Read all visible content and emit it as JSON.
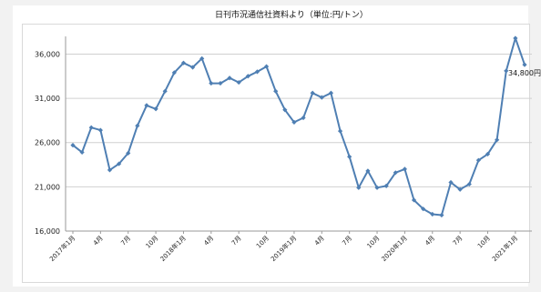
{
  "chart_data": {
    "type": "line",
    "title": "日刊市況通信社資料より（単位:円/トン）",
    "xlabel": "",
    "ylabel": "",
    "ylim": [
      16000,
      38000
    ],
    "yticks": [
      16000,
      21000,
      26000,
      31000,
      36000
    ],
    "ytick_labels": [
      "16,000",
      "21,000",
      "26,000",
      "31,000",
      "36,000"
    ],
    "grid": "horizontal",
    "legend": "none",
    "x_labels": [
      {
        "index": 0,
        "text": "2017年1月"
      },
      {
        "index": 3,
        "text": "4月"
      },
      {
        "index": 6,
        "text": "7月"
      },
      {
        "index": 9,
        "text": "10月"
      },
      {
        "index": 12,
        "text": "2018年1月"
      },
      {
        "index": 15,
        "text": "4月"
      },
      {
        "index": 18,
        "text": "7月"
      },
      {
        "index": 21,
        "text": "10月"
      },
      {
        "index": 24,
        "text": "2019年1月"
      },
      {
        "index": 27,
        "text": "4月"
      },
      {
        "index": 30,
        "text": "7月"
      },
      {
        "index": 33,
        "text": "10月"
      },
      {
        "index": 36,
        "text": "2020年1月"
      },
      {
        "index": 39,
        "text": "4月"
      },
      {
        "index": 42,
        "text": "7月"
      },
      {
        "index": 45,
        "text": "10月"
      },
      {
        "index": 48,
        "text": "2021年1月"
      }
    ],
    "series": [
      {
        "color": "#4f7fb3",
        "values": [
          25700,
          24900,
          27700,
          27400,
          22900,
          23600,
          24800,
          27900,
          30200,
          29800,
          31800,
          33900,
          35000,
          34500,
          35500,
          32700,
          32700,
          33300,
          32800,
          33500,
          34000,
          34600,
          31800,
          29700,
          28300,
          28800,
          31600,
          31100,
          31600,
          27300,
          24400,
          20900,
          22800,
          20900,
          21100,
          22600,
          23000,
          19500,
          18500,
          17900,
          17800,
          21500,
          20700,
          21300,
          24000,
          24700,
          26300,
          34100,
          37800,
          34800
        ]
      }
    ],
    "annotations": [
      {
        "index": 49,
        "text": "34,800円"
      }
    ]
  }
}
